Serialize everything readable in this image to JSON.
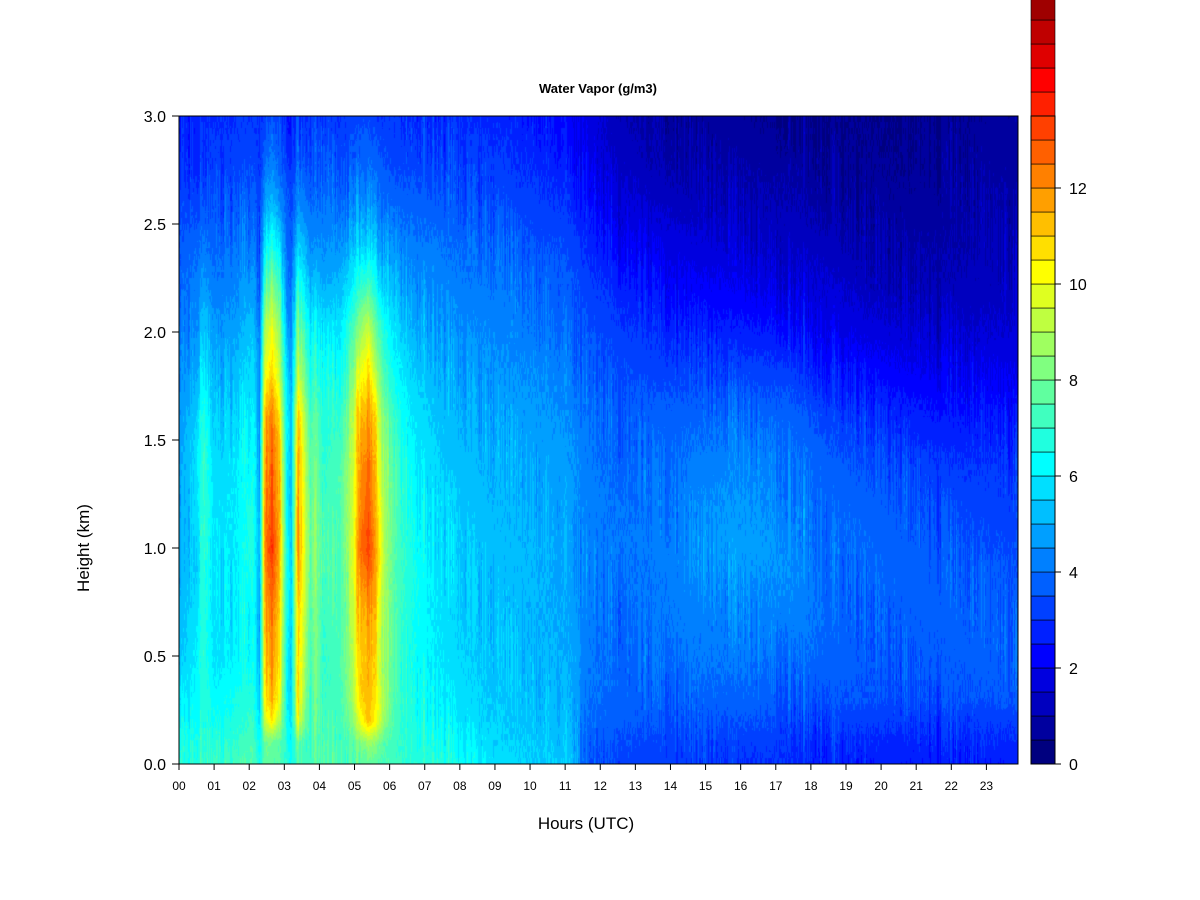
{
  "chart_data": {
    "type": "heatmap",
    "title": "Water Vapor (g/m3)",
    "xlabel": "Hours (UTC)",
    "ylabel": "Height (km)",
    "xlim": [
      0,
      23.9
    ],
    "ylim": [
      0,
      3.0
    ],
    "x_ticks": [
      "00",
      "01",
      "02",
      "03",
      "04",
      "05",
      "06",
      "07",
      "08",
      "09",
      "10",
      "11",
      "12",
      "13",
      "14",
      "15",
      "16",
      "17",
      "18",
      "19",
      "20",
      "21",
      "22",
      "23"
    ],
    "y_ticks": [
      "0.0",
      "0.5",
      "1.0",
      "1.5",
      "2.0",
      "2.5",
      "3.0"
    ],
    "colorbar": {
      "min": 0,
      "max": 13.5,
      "step": 0.5,
      "tick_values": [
        0,
        2,
        4,
        6,
        8,
        10,
        12
      ],
      "tick_labels": [
        "0",
        "2",
        "4",
        "6",
        "8",
        "10",
        "12"
      ],
      "colors": [
        "#00007F",
        "#00009F",
        "#0000BF",
        "#0000DF",
        "#0000FF",
        "#0020FF",
        "#0040FF",
        "#0060FF",
        "#0080FF",
        "#009FFF",
        "#00BFFF",
        "#00DFFF",
        "#00FFFF",
        "#20FFDF",
        "#40FFBF",
        "#60FF9F",
        "#80FF80",
        "#9FFF60",
        "#BFFF40",
        "#DFFF20",
        "#FFFF00",
        "#FFDF00",
        "#FFBF00",
        "#FF9F00",
        "#FF8000",
        "#FF6000",
        "#FF4000",
        "#FF2000",
        "#FF0000",
        "#DF0000",
        "#BF0000",
        "#9F0000",
        "#800000"
      ]
    },
    "grid": false,
    "legend": "colorbar-right",
    "heights_km": [
      0.0,
      0.1,
      0.2,
      0.3,
      0.5,
      0.7,
      0.9,
      1.0,
      1.2,
      1.4,
      1.6,
      1.8,
      2.0,
      2.2,
      2.4,
      2.6,
      2.8,
      3.0
    ],
    "columns": [
      {
        "hour": 0.0,
        "values": [
          6.8,
          6.6,
          6.3,
          6.0,
          5.4,
          5.1,
          5.0,
          5.0,
          4.9,
          4.8,
          4.6,
          4.4,
          4.2,
          3.9,
          3.6,
          3.3,
          3.0,
          2.8
        ]
      },
      {
        "hour": 0.5,
        "values": [
          7.0,
          6.9,
          6.6,
          6.4,
          6.0,
          5.9,
          5.8,
          5.9,
          5.9,
          5.8,
          5.6,
          5.2,
          4.8,
          4.3,
          3.9,
          3.4,
          3.1,
          2.9
        ]
      },
      {
        "hour": 0.7,
        "values": [
          7.2,
          7.1,
          6.9,
          6.9,
          6.9,
          7.0,
          7.1,
          7.2,
          7.2,
          7.1,
          6.9,
          6.3,
          5.6,
          4.8,
          4.1,
          3.6,
          3.2,
          3.0
        ]
      },
      {
        "hour": 1.0,
        "values": [
          7.0,
          6.8,
          6.4,
          6.2,
          5.8,
          5.7,
          5.7,
          5.8,
          5.8,
          5.6,
          5.4,
          5.0,
          4.6,
          4.2,
          3.8,
          3.4,
          3.1,
          2.9
        ]
      },
      {
        "hour": 1.6,
        "values": [
          7.2,
          7.0,
          6.7,
          6.5,
          6.1,
          6.0,
          6.0,
          6.0,
          6.0,
          5.9,
          5.6,
          5.2,
          4.8,
          4.4,
          4.0,
          3.6,
          3.2,
          3.0
        ]
      },
      {
        "hour": 2.1,
        "values": [
          7.6,
          7.4,
          7.1,
          6.9,
          6.6,
          6.6,
          6.7,
          6.8,
          6.7,
          6.6,
          6.3,
          5.9,
          5.4,
          4.9,
          4.4,
          3.8,
          3.4,
          3.1
        ]
      },
      {
        "hour": 2.3,
        "values": [
          6.5,
          6.2,
          5.8,
          5.5,
          5.2,
          5.0,
          5.0,
          5.0,
          5.0,
          4.9,
          4.7,
          4.4,
          4.1,
          3.8,
          3.5,
          3.2,
          3.0,
          2.9
        ]
      },
      {
        "hour": 2.45,
        "values": [
          7.8,
          8.0,
          9.5,
          10.5,
          11.0,
          11.5,
          12.0,
          12.3,
          12.0,
          11.8,
          11.5,
          10.0,
          9.0,
          7.5,
          6.0,
          4.8,
          3.8,
          3.2
        ]
      },
      {
        "hour": 2.65,
        "values": [
          7.6,
          8.0,
          10.5,
          11.5,
          12.0,
          12.5,
          13.2,
          13.5,
          13.0,
          12.8,
          12.3,
          11.0,
          10.0,
          8.4,
          6.6,
          5.2,
          4.2,
          3.5
        ]
      },
      {
        "hour": 2.85,
        "values": [
          7.5,
          7.6,
          9.0,
          10.0,
          10.5,
          11.0,
          11.4,
          11.6,
          11.4,
          11.2,
          10.8,
          9.5,
          8.6,
          7.2,
          5.8,
          4.6,
          3.7,
          3.1
        ]
      },
      {
        "hour": 3.05,
        "values": [
          7.0,
          6.9,
          6.8,
          6.8,
          6.8,
          6.9,
          7.0,
          7.0,
          6.9,
          6.8,
          6.5,
          6.0,
          5.5,
          4.8,
          4.2,
          3.7,
          3.3,
          3.0
        ]
      },
      {
        "hour": 3.2,
        "values": [
          6.5,
          6.3,
          6.0,
          5.8,
          5.6,
          5.5,
          5.5,
          5.5,
          5.5,
          5.4,
          5.2,
          4.9,
          4.5,
          4.1,
          3.7,
          3.3,
          3.0,
          2.8
        ]
      },
      {
        "hour": 3.4,
        "values": [
          7.5,
          7.8,
          10.0,
          10.6,
          10.8,
          11.0,
          11.7,
          12.0,
          11.7,
          11.6,
          11.2,
          9.5,
          8.2,
          6.8,
          5.6,
          4.5,
          3.7,
          3.2
        ]
      },
      {
        "hour": 3.55,
        "values": [
          7.3,
          7.4,
          8.4,
          9.0,
          9.3,
          9.6,
          10.0,
          10.2,
          10.0,
          9.8,
          9.4,
          8.3,
          7.5,
          6.3,
          5.2,
          4.2,
          3.5,
          3.1
        ]
      },
      {
        "hour": 3.75,
        "values": [
          7.2,
          7.1,
          7.0,
          7.1,
          7.3,
          7.5,
          7.7,
          7.8,
          7.7,
          7.5,
          7.2,
          6.6,
          6.0,
          5.2,
          4.4,
          3.8,
          3.3,
          3.0
        ]
      },
      {
        "hour": 3.9,
        "values": [
          7.6,
          7.6,
          7.8,
          8.0,
          8.2,
          8.3,
          8.4,
          8.4,
          8.3,
          8.1,
          7.8,
          7.0,
          6.3,
          5.4,
          4.6,
          3.9,
          3.4,
          3.1
        ]
      },
      {
        "hour": 4.1,
        "values": [
          7.2,
          7.1,
          7.0,
          7.0,
          7.0,
          7.0,
          7.1,
          7.1,
          7.0,
          6.9,
          6.7,
          6.2,
          5.7,
          5.0,
          4.4,
          3.8,
          3.3,
          3.0
        ]
      },
      {
        "hour": 4.6,
        "values": [
          7.5,
          7.4,
          7.3,
          7.3,
          7.4,
          7.5,
          7.6,
          7.6,
          7.5,
          7.4,
          7.1,
          6.6,
          6.0,
          5.3,
          4.6,
          4.0,
          3.5,
          3.1
        ]
      },
      {
        "hour": 4.95,
        "values": [
          7.4,
          7.6,
          8.3,
          8.8,
          9.0,
          9.2,
          9.5,
          9.6,
          9.4,
          9.3,
          9.0,
          8.2,
          7.4,
          6.2,
          5.2,
          4.3,
          3.6,
          3.2
        ]
      },
      {
        "hour": 5.15,
        "values": [
          7.6,
          8.2,
          10.0,
          10.8,
          11.0,
          11.4,
          12.0,
          12.5,
          12.0,
          11.8,
          11.4,
          10.0,
          8.6,
          7.0,
          5.6,
          4.6,
          3.8,
          3.3
        ]
      },
      {
        "hour": 5.4,
        "values": [
          7.8,
          8.8,
          11.2,
          11.4,
          11.7,
          12.2,
          13.0,
          13.3,
          12.9,
          12.7,
          12.2,
          11.0,
          9.5,
          7.6,
          6.0,
          4.8,
          3.9,
          3.3
        ]
      },
      {
        "hour": 5.6,
        "values": [
          7.6,
          8.4,
          10.4,
          10.6,
          10.8,
          11.2,
          11.6,
          11.8,
          11.4,
          11.2,
          10.8,
          9.2,
          8.0,
          6.6,
          5.4,
          4.4,
          3.7,
          3.2
        ]
      },
      {
        "hour": 5.85,
        "values": [
          7.4,
          7.6,
          8.6,
          8.8,
          8.6,
          8.7,
          8.9,
          9.0,
          8.8,
          8.6,
          8.2,
          7.3,
          6.6,
          5.6,
          4.8,
          4.0,
          3.5,
          3.1
        ]
      },
      {
        "hour": 6.15,
        "values": [
          7.2,
          7.1,
          7.2,
          7.3,
          7.3,
          7.4,
          7.5,
          7.5,
          7.4,
          7.2,
          6.9,
          6.3,
          5.8,
          5.1,
          4.4,
          3.8,
          3.3,
          3.0
        ]
      },
      {
        "hour": 6.6,
        "values": [
          6.9,
          6.8,
          6.7,
          6.7,
          6.6,
          6.6,
          6.6,
          6.6,
          6.5,
          6.3,
          6.0,
          5.6,
          5.2,
          4.7,
          4.2,
          3.7,
          3.3,
          3.0
        ]
      },
      {
        "hour": 7.2,
        "values": [
          6.9,
          6.7,
          6.5,
          6.3,
          6.1,
          6.0,
          6.0,
          6.0,
          5.9,
          5.7,
          5.5,
          5.2,
          4.9,
          4.5,
          4.1,
          3.7,
          3.3,
          3.0
        ]
      },
      {
        "hour": 8.0,
        "values": [
          6.4,
          6.2,
          5.9,
          5.8,
          5.6,
          5.5,
          5.5,
          5.5,
          5.4,
          5.2,
          5.0,
          4.8,
          4.5,
          4.2,
          3.9,
          3.5,
          3.2,
          2.9
        ]
      },
      {
        "hour": 9.0,
        "values": [
          5.8,
          5.6,
          5.5,
          5.4,
          5.3,
          5.2,
          5.2,
          5.2,
          5.1,
          5.0,
          4.8,
          4.6,
          4.4,
          4.1,
          3.8,
          3.4,
          3.1,
          2.8
        ]
      },
      {
        "hour": 10.0,
        "values": [
          5.6,
          5.5,
          5.3,
          5.3,
          5.2,
          5.1,
          5.1,
          5.1,
          5.0,
          4.9,
          4.7,
          4.5,
          4.2,
          3.9,
          3.6,
          3.2,
          2.9,
          2.6
        ]
      },
      {
        "hour": 11.0,
        "values": [
          5.4,
          5.3,
          5.2,
          5.1,
          5.0,
          4.9,
          4.9,
          4.9,
          4.8,
          4.7,
          4.5,
          4.3,
          4.0,
          3.7,
          3.4,
          3.0,
          2.6,
          2.3
        ]
      },
      {
        "hour": 11.35,
        "values": [
          5.2,
          5.1,
          5.0,
          4.9,
          4.8,
          4.7,
          4.7,
          4.7,
          4.6,
          4.5,
          4.3,
          4.1,
          3.8,
          3.5,
          3.2,
          2.8,
          2.4,
          2.1
        ]
      },
      {
        "hour": 11.5,
        "values": [
          3.7,
          3.8,
          4.0,
          4.1,
          4.2,
          4.3,
          4.4,
          4.4,
          4.3,
          4.2,
          4.1,
          3.9,
          3.6,
          3.3,
          3.0,
          2.6,
          2.2,
          1.9
        ]
      },
      {
        "hour": 12.5,
        "values": [
          3.4,
          3.5,
          3.7,
          3.8,
          3.9,
          4.0,
          4.1,
          4.1,
          4.0,
          3.9,
          3.8,
          3.5,
          3.2,
          2.8,
          2.3,
          1.8,
          1.4,
          1.1
        ]
      },
      {
        "hour": 13.5,
        "values": [
          3.2,
          3.3,
          3.5,
          3.7,
          3.9,
          4.0,
          4.1,
          4.1,
          4.0,
          3.9,
          3.7,
          3.3,
          2.9,
          2.4,
          1.9,
          1.4,
          1.0,
          0.8
        ]
      },
      {
        "hour": 14.5,
        "values": [
          3.2,
          3.3,
          3.6,
          3.8,
          4.1,
          4.2,
          4.4,
          4.4,
          4.3,
          4.1,
          3.8,
          3.3,
          2.8,
          2.2,
          1.7,
          1.2,
          0.9,
          0.7
        ]
      },
      {
        "hour": 15.5,
        "values": [
          3.1,
          3.2,
          3.5,
          3.8,
          4.1,
          4.3,
          4.6,
          4.7,
          4.6,
          4.3,
          3.9,
          3.3,
          2.7,
          2.1,
          1.6,
          1.2,
          0.9,
          0.7
        ]
      },
      {
        "hour": 16.5,
        "values": [
          3.0,
          3.2,
          3.5,
          3.8,
          4.2,
          4.4,
          4.6,
          4.7,
          4.6,
          4.4,
          4.0,
          3.3,
          2.6,
          2.0,
          1.5,
          1.1,
          0.8,
          0.6
        ]
      },
      {
        "hour": 17.5,
        "values": [
          2.9,
          3.1,
          3.4,
          3.7,
          4.1,
          4.3,
          4.5,
          4.5,
          4.4,
          4.2,
          3.8,
          3.2,
          2.5,
          1.9,
          1.4,
          1.0,
          0.8,
          0.6
        ]
      },
      {
        "hour": 18.5,
        "values": [
          2.8,
          3.0,
          3.3,
          3.6,
          3.8,
          3.9,
          4.0,
          4.0,
          3.9,
          3.7,
          3.3,
          2.7,
          2.1,
          1.6,
          1.2,
          0.9,
          0.7,
          0.5
        ]
      },
      {
        "hour": 19.5,
        "values": [
          2.7,
          2.9,
          3.2,
          3.5,
          3.7,
          3.8,
          3.9,
          3.9,
          3.8,
          3.5,
          3.1,
          2.5,
          1.8,
          1.3,
          1.0,
          0.8,
          0.6,
          0.5
        ]
      },
      {
        "hour": 20.5,
        "values": [
          2.6,
          2.8,
          3.1,
          3.4,
          3.6,
          3.7,
          3.8,
          3.8,
          3.6,
          3.3,
          2.8,
          2.2,
          1.6,
          1.1,
          0.9,
          0.7,
          0.5,
          0.4
        ]
      },
      {
        "hour": 21.5,
        "values": [
          2.6,
          2.8,
          3.1,
          3.4,
          3.6,
          3.7,
          3.7,
          3.6,
          3.4,
          3.1,
          2.6,
          2.0,
          1.5,
          1.1,
          0.9,
          0.7,
          0.6,
          0.5
        ]
      },
      {
        "hour": 22.5,
        "values": [
          2.6,
          2.8,
          3.1,
          3.5,
          3.7,
          3.7,
          3.6,
          3.5,
          3.3,
          3.0,
          2.5,
          2.0,
          1.5,
          1.2,
          1.0,
          0.8,
          0.7,
          0.6
        ]
      },
      {
        "hour": 23.9,
        "values": [
          2.7,
          2.9,
          3.2,
          3.6,
          3.7,
          3.6,
          3.5,
          3.4,
          3.2,
          2.9,
          2.5,
          2.0,
          1.6,
          1.3,
          1.1,
          0.9,
          0.8,
          0.7
        ]
      }
    ]
  }
}
